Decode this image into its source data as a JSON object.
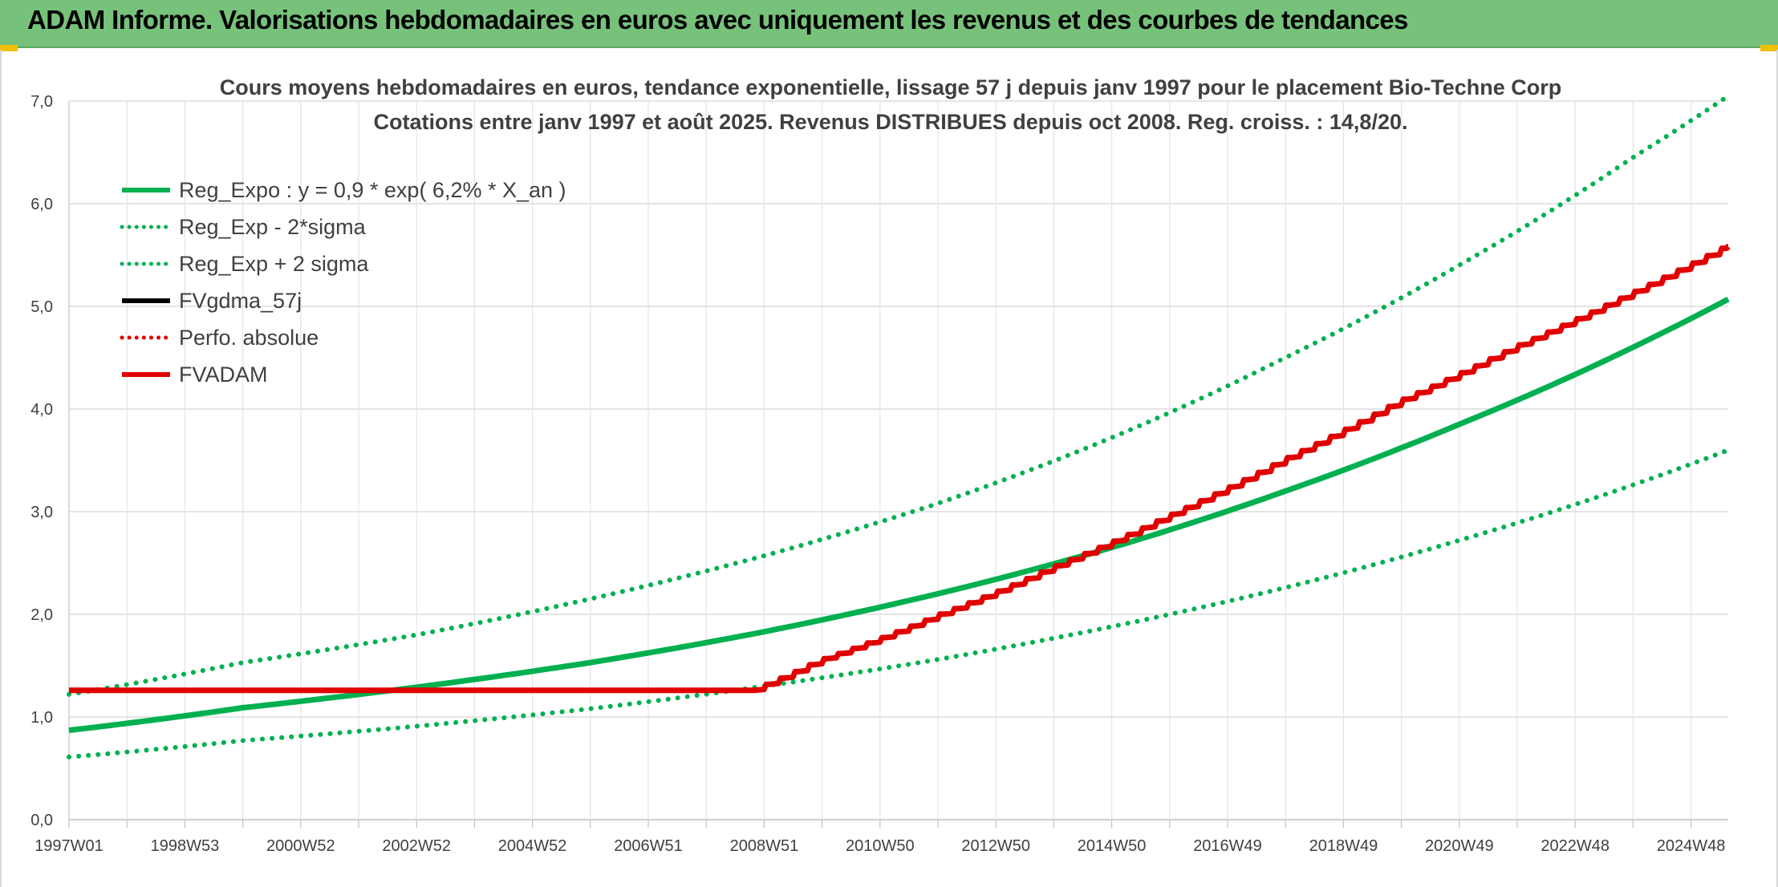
{
  "header": {
    "title": "ADAM Informe. Valorisations hebdomadaires en euros avec uniquement les revenus et des courbes de tendances"
  },
  "chart_data": {
    "type": "line",
    "title": "Cours moyens hebdomadaires en euros, tendance exponentielle, lissage 57 j depuis janv 1997 pour le placement Bio-Techne Corp",
    "subtitle": "Cotations entre janv 1997 et août 2025. Revenus DISTRIBUES depuis oct 2008. Reg. croiss. : 14,8/20.",
    "ylim": [
      0,
      7
    ],
    "y_ticks": [
      "0,0",
      "1,0",
      "2,0",
      "3,0",
      "4,0",
      "5,0",
      "6,0",
      "7,0"
    ],
    "x_ticks": [
      "1997W01",
      "1998W53",
      "2000W52",
      "2002W52",
      "2004W52",
      "2006W51",
      "2008W51",
      "2010W50",
      "2012W50",
      "2014W50",
      "2016W49",
      "2018W49",
      "2020W49",
      "2022W48",
      "2024W48"
    ],
    "x_range_years": [
      1997.0,
      2025.65
    ],
    "legend_position": "top-left",
    "grid": true,
    "series": [
      {
        "name": "Reg_Expo : y = 0,9 * exp( 6,2% *  X_an )",
        "color": "#00b050",
        "style": "solid",
        "points": [
          [
            1997.0,
            0.87
          ],
          [
            2000.0,
            1.09
          ],
          [
            2003.0,
            1.29
          ],
          [
            2006.0,
            1.53
          ],
          [
            2009.0,
            1.83
          ],
          [
            2012.0,
            2.2
          ],
          [
            2015.0,
            2.65
          ],
          [
            2018.0,
            3.2
          ],
          [
            2021.0,
            3.85
          ],
          [
            2024.0,
            4.6
          ],
          [
            2025.65,
            5.07
          ]
        ]
      },
      {
        "name": "Reg_Exp - 2*sigma",
        "color": "#00b050",
        "style": "dotted",
        "points": [
          [
            1997.0,
            0.61
          ],
          [
            2000.0,
            0.77
          ],
          [
            2003.0,
            0.91
          ],
          [
            2006.0,
            1.08
          ],
          [
            2009.0,
            1.3
          ],
          [
            2012.0,
            1.56
          ],
          [
            2015.0,
            1.88
          ],
          [
            2018.0,
            2.26
          ],
          [
            2021.0,
            2.72
          ],
          [
            2024.0,
            3.26
          ],
          [
            2025.65,
            3.6
          ]
        ]
      },
      {
        "name": "Reg_Exp + 2 sigma",
        "color": "#00b050",
        "style": "dotted",
        "points": [
          [
            1997.0,
            1.22
          ],
          [
            2000.0,
            1.53
          ],
          [
            2003.0,
            1.8
          ],
          [
            2006.0,
            2.15
          ],
          [
            2009.0,
            2.57
          ],
          [
            2012.0,
            3.08
          ],
          [
            2015.0,
            3.72
          ],
          [
            2018.0,
            4.5
          ],
          [
            2021.0,
            5.4
          ],
          [
            2024.0,
            6.45
          ],
          [
            2025.65,
            7.05
          ]
        ]
      },
      {
        "name": "FVgdma_57j",
        "color": "#000000",
        "style": "solid",
        "points": []
      },
      {
        "name": "Perfo. absolue",
        "color": "#e00000",
        "style": "dotted",
        "points": []
      },
      {
        "name": "FVADAM",
        "color": "#e00000",
        "style": "solid",
        "points": [
          [
            1997.0,
            1.26
          ],
          [
            2008.85,
            1.26
          ],
          [
            2010.0,
            1.55
          ],
          [
            2012.0,
            1.98
          ],
          [
            2014.0,
            2.45
          ],
          [
            2016.0,
            2.95
          ],
          [
            2018.0,
            3.5
          ],
          [
            2020.0,
            4.07
          ],
          [
            2022.0,
            4.6
          ],
          [
            2024.0,
            5.12
          ],
          [
            2025.65,
            5.58
          ]
        ]
      }
    ]
  }
}
